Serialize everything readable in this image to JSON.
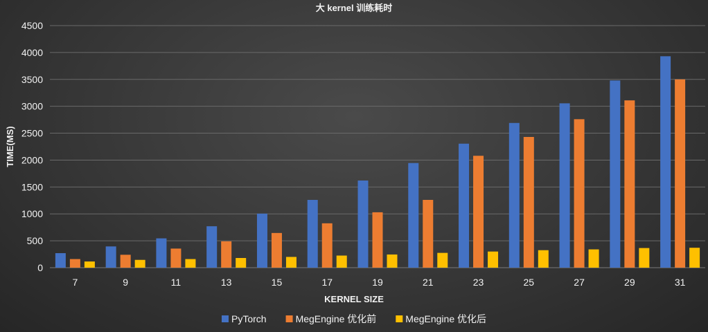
{
  "chart_data": {
    "type": "bar",
    "title": "大 kernel 训练耗时",
    "xlabel": "KERNEL SIZE",
    "ylabel": "TIME(MS)",
    "ylim": [
      0,
      4500
    ],
    "yticks": [
      0,
      500,
      1000,
      1500,
      2000,
      2500,
      3000,
      3500,
      4000,
      4500
    ],
    "categories": [
      "7",
      "9",
      "11",
      "13",
      "15",
      "17",
      "19",
      "21",
      "23",
      "25",
      "27",
      "29",
      "31"
    ],
    "series": [
      {
        "name": "PyTorch",
        "color": "#4472c4",
        "values": [
          270,
          395,
          545,
          770,
          1005,
          1260,
          1620,
          1945,
          2305,
          2690,
          3055,
          3480,
          3930
        ]
      },
      {
        "name": "MegEngine 优化前",
        "color": "#ed7d31",
        "values": [
          160,
          240,
          355,
          490,
          645,
          825,
          1030,
          1260,
          2080,
          2430,
          2760,
          3110,
          3500
        ]
      },
      {
        "name": "MegEngine 优化后",
        "color": "#ffc000",
        "values": [
          115,
          145,
          160,
          180,
          200,
          225,
          245,
          275,
          300,
          325,
          340,
          365,
          370
        ]
      }
    ],
    "grid": true,
    "legend": "bottom"
  }
}
